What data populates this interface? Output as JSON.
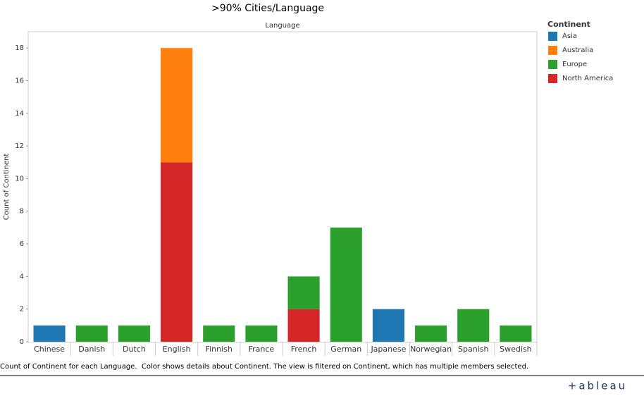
{
  "chart_data": {
    "type": "stacked_bar",
    "title": ">90% Cities/Language",
    "x_header": "Language",
    "y_label": "Count of Continent",
    "legend_title": "Continent",
    "legend_position": "right",
    "categories": [
      "Chinese",
      "Danish",
      "Dutch",
      "English",
      "Finnish",
      "France",
      "French",
      "German",
      "Japanese",
      "Norwegian",
      "Spanish",
      "Swedish"
    ],
    "series": [
      {
        "name": "Asia",
        "color": "#1f77b4",
        "values": [
          1,
          null,
          null,
          null,
          null,
          null,
          null,
          null,
          2,
          null,
          null,
          null
        ]
      },
      {
        "name": "Australia",
        "color": "#ff7f0e",
        "values": [
          null,
          null,
          null,
          7,
          null,
          null,
          null,
          null,
          null,
          null,
          null,
          null
        ]
      },
      {
        "name": "Europe",
        "color": "#2ca02c",
        "values": [
          null,
          1,
          1,
          null,
          1,
          1,
          2,
          7,
          null,
          1,
          2,
          1
        ]
      },
      {
        "name": "North America",
        "color": "#d62728",
        "values": [
          null,
          null,
          null,
          11,
          null,
          null,
          2,
          null,
          null,
          null,
          null,
          null
        ]
      }
    ],
    "ylim": [
      0,
      19
    ],
    "yticks": [
      0,
      2,
      4,
      6,
      8,
      10,
      12,
      14,
      16,
      18
    ],
    "grid": false,
    "caption": "Count of Continent for each Language.  Color shows details about Continent. The view is filtered on Continent, which has multiple members selected.",
    "logo": "+ableau"
  }
}
